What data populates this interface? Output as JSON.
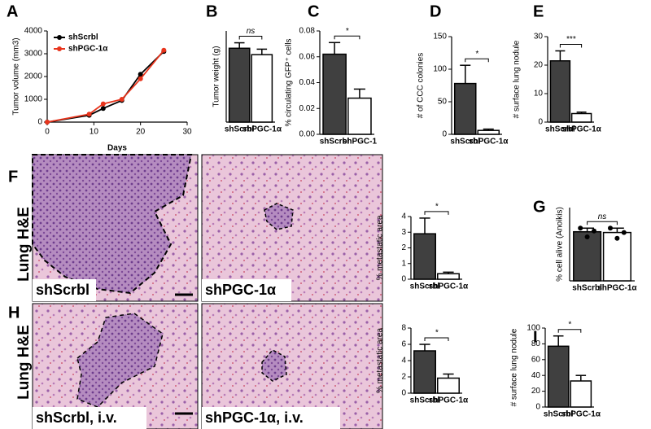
{
  "chart_data": [
    {
      "type": "line",
      "label": "A",
      "x_label": "Days",
      "y_label": "Tumor volume (mm3)",
      "xlim": [
        0,
        30
      ],
      "xticks": [
        0,
        10,
        20,
        30
      ],
      "ylim": [
        0,
        4000
      ],
      "yticks": [
        0,
        1000,
        2000,
        3000,
        4000
      ],
      "series": [
        {
          "name": "shScrbl",
          "color": "#000000",
          "x": [
            0,
            9,
            12,
            16,
            20,
            25
          ],
          "values": [
            0,
            300,
            600,
            950,
            2100,
            3100
          ]
        },
        {
          "name": "shPGC-1α",
          "color": "#e8341c",
          "x": [
            0,
            9,
            12,
            16,
            20,
            25
          ],
          "values": [
            0,
            350,
            800,
            1000,
            1900,
            3150
          ]
        }
      ]
    },
    {
      "type": "bar",
      "label": "B",
      "y_label": "Tumor weight (g)",
      "ylim": [
        0,
        2
      ],
      "categories": [
        "shScrbl",
        "shPGC-1α"
      ],
      "values": [
        1.62,
        1.48
      ],
      "errors": [
        0.12,
        0.12
      ],
      "colors": [
        "#404040",
        "#ffffff"
      ],
      "annotation": "ns"
    },
    {
      "type": "bar",
      "label": "C",
      "y_label": "% circulating GFP⁺ cells",
      "ylim": [
        0,
        0.08
      ],
      "yticks": [
        {
          "value": 0,
          "label": "0.00"
        },
        0.02,
        0.04,
        0.06,
        0.08
      ],
      "categories": [
        "shScrbl",
        "shPGC-1"
      ],
      "values": [
        0.062,
        0.028
      ],
      "errors": [
        0.009,
        0.007
      ],
      "colors": [
        "#404040",
        "#ffffff"
      ],
      "annotation": "*"
    },
    {
      "type": "bar",
      "label": "D",
      "y_label": "# of CCC colonies",
      "ylim": [
        0,
        150
      ],
      "yticks": [
        0,
        50,
        100,
        150
      ],
      "categories": [
        "shScrbl",
        "shPGC-1α"
      ],
      "values": [
        78,
        6
      ],
      "errors": [
        28,
        2
      ],
      "colors": [
        "#404040",
        "#ffffff"
      ],
      "annotation": "*"
    },
    {
      "type": "bar",
      "label": "E",
      "y_label": "# surface lung nodule",
      "ylim": [
        0,
        30
      ],
      "yticks": [
        0,
        10,
        20,
        30
      ],
      "categories": [
        "shScrbl",
        "shPGC-1α"
      ],
      "values": [
        21.5,
        3
      ],
      "errors": [
        3.5,
        0.5
      ],
      "colors": [
        "#404040",
        "#ffffff"
      ],
      "annotation": "***"
    },
    {
      "type": "bar",
      "y_label": "% metastatic area",
      "ylim": [
        0,
        4
      ],
      "yticks": [
        0,
        1,
        2,
        3,
        4
      ],
      "categories": [
        "shScrbl",
        "shPGC-1α"
      ],
      "values": [
        2.9,
        0.35
      ],
      "errors": [
        1.0,
        0.1
      ],
      "colors": [
        "#404040",
        "#ffffff"
      ],
      "annotation": "*"
    },
    {
      "type": "bar",
      "label": "G",
      "y_label": "% cell alive (Anoikis)",
      "ylim": [
        0,
        50
      ],
      "categories": [
        "shScrbl",
        "shPGC-1α"
      ],
      "values": [
        33.5,
        33
      ],
      "errors": [
        2.5,
        3
      ],
      "points": [
        [
          36,
          30,
          34
        ],
        [
          36,
          29,
          33
        ]
      ],
      "colors": [
        "#404040",
        "#ffffff"
      ],
      "annotation": "ns"
    },
    {
      "type": "bar",
      "y_label": "% metastatic area",
      "ylim": [
        0,
        8
      ],
      "yticks": [
        0,
        2,
        4,
        6,
        8
      ],
      "categories": [
        "shScrbl",
        "shPGC-1α"
      ],
      "values": [
        5.2,
        1.85
      ],
      "errors": [
        0.8,
        0.5
      ],
      "colors": [
        "#404040",
        "#ffffff"
      ],
      "annotation": "*"
    },
    {
      "type": "bar",
      "label": "I",
      "y_label": "# surface lung nodule",
      "ylim": [
        0,
        100
      ],
      "yticks": [
        0,
        20,
        40,
        60,
        80,
        100
      ],
      "categories": [
        "shScrbl",
        "shPGC-1α"
      ],
      "values": [
        77,
        33
      ],
      "errors": [
        13,
        7
      ],
      "colors": [
        "#404040",
        "#ffffff"
      ],
      "annotation": "*"
    }
  ],
  "micrographs": [
    {
      "label": "F",
      "row_label": "Lung H&E",
      "captions": [
        "shScrbl",
        "shPGC-1α"
      ]
    },
    {
      "label": "H",
      "row_label": "Lung H&E",
      "captions": [
        "shScrbl, i.v.",
        "shPGC-1α, i.v."
      ]
    }
  ]
}
